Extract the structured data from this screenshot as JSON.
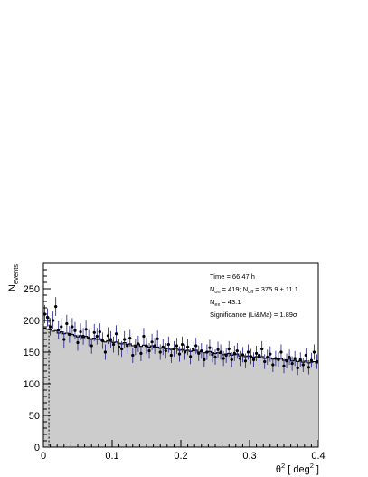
{
  "stats": {
    "time": "Time = 66.47 h",
    "line2": {
      "a": "N",
      "a_sub": "on",
      "b": " = 419; N",
      "b_sub": "off",
      "c": " = 375.9 ± 11.1"
    },
    "line3": {
      "a": "N",
      "a_sub": "ex",
      "b": " = 43.1"
    },
    "significance": "Significance (Li&Ma) = 1.89σ"
  },
  "axes": {
    "ylabel_main": "N",
    "ylabel_sub": "events",
    "xlabel_theta": "θ",
    "xlabel_sup": "2",
    "xlabel_unit": " [ deg",
    "xlabel_unit_sup": "2",
    "xlabel_close": " ]"
  },
  "chart_data": {
    "type": "scatter",
    "title": "",
    "xlabel": "θ² [ deg² ]",
    "ylabel": "N_events",
    "xlim": [
      0,
      0.4
    ],
    "ylim": [
      0,
      290
    ],
    "xticks": [
      0,
      0.1,
      0.2,
      0.3,
      0.4
    ],
    "xtick_labels": [
      "0",
      "0.1",
      "0.2",
      "0.3",
      "0.4"
    ],
    "yticks": [
      0,
      50,
      100,
      150,
      200,
      250
    ],
    "ytick_labels": [
      "0",
      "50",
      "100",
      "150",
      "200",
      "250"
    ],
    "cut_line_x": 0.008,
    "colors": {
      "on_points": "#000000",
      "on_errors": "#1a1a8c",
      "background_fill": "#cccccc",
      "background_line": "#000000"
    },
    "series": [
      {
        "label": "on",
        "x": [
          0.002,
          0.006,
          0.01,
          0.014,
          0.018,
          0.022,
          0.026,
          0.03,
          0.034,
          0.038,
          0.042,
          0.046,
          0.05,
          0.054,
          0.058,
          0.062,
          0.066,
          0.07,
          0.074,
          0.078,
          0.082,
          0.086,
          0.09,
          0.094,
          0.098,
          0.102,
          0.106,
          0.11,
          0.114,
          0.118,
          0.122,
          0.126,
          0.13,
          0.134,
          0.138,
          0.142,
          0.146,
          0.15,
          0.154,
          0.158,
          0.162,
          0.166,
          0.17,
          0.174,
          0.178,
          0.182,
          0.186,
          0.19,
          0.194,
          0.198,
          0.202,
          0.206,
          0.21,
          0.214,
          0.218,
          0.222,
          0.226,
          0.23,
          0.234,
          0.238,
          0.242,
          0.246,
          0.25,
          0.254,
          0.258,
          0.262,
          0.266,
          0.27,
          0.274,
          0.278,
          0.282,
          0.286,
          0.29,
          0.294,
          0.298,
          0.302,
          0.306,
          0.31,
          0.314,
          0.318,
          0.322,
          0.326,
          0.33,
          0.334,
          0.338,
          0.342,
          0.346,
          0.35,
          0.354,
          0.358,
          0.362,
          0.366,
          0.37,
          0.374,
          0.378,
          0.382,
          0.386,
          0.39,
          0.394,
          0.398
        ],
        "y": [
          210,
          205,
          190,
          200,
          222,
          185,
          190,
          170,
          195,
          178,
          190,
          184,
          165,
          182,
          175,
          186,
          172,
          160,
          181,
          175,
          182,
          168,
          150,
          176,
          170,
          162,
          179,
          158,
          155,
          170,
          160,
          172,
          145,
          158,
          163,
          148,
          175,
          160,
          152,
          166,
          160,
          171,
          150,
          158,
          152,
          162,
          145,
          155,
          160,
          147,
          162,
          150,
          158,
          143,
          155,
          160,
          148,
          152,
          138,
          150,
          157,
          146,
          142,
          154,
          150,
          140,
          145,
          155,
          138,
          148,
          152,
          140,
          146,
          136,
          150,
          143,
          138,
          148,
          145,
          155,
          135,
          142,
          147,
          130,
          140,
          138,
          150,
          128,
          136,
          142,
          132,
          140,
          125,
          138,
          130,
          145,
          126,
          137,
          150,
          135
        ],
        "yerr": [
          14.5,
          14.3,
          13.8,
          14.1,
          14.9,
          13.6,
          13.8,
          13.0,
          14.0,
          13.3,
          13.8,
          13.6,
          12.8,
          13.5,
          13.2,
          13.6,
          13.1,
          12.6,
          13.5,
          13.2,
          13.5,
          13.0,
          12.2,
          13.3,
          13.0,
          12.7,
          13.4,
          12.6,
          12.4,
          13.0,
          12.6,
          13.1,
          12.0,
          12.6,
          12.8,
          12.2,
          13.2,
          12.6,
          12.3,
          12.9,
          12.6,
          13.1,
          12.2,
          12.6,
          12.3,
          12.7,
          12.0,
          12.4,
          12.6,
          12.1,
          12.7,
          12.2,
          12.6,
          12.0,
          12.4,
          12.6,
          12.2,
          12.3,
          11.7,
          12.2,
          12.5,
          12.1,
          11.9,
          12.4,
          12.2,
          11.8,
          12.0,
          12.4,
          11.7,
          12.2,
          12.3,
          11.8,
          12.1,
          11.7,
          12.2,
          12.0,
          11.7,
          12.2,
          12.0,
          12.4,
          11.6,
          11.9,
          12.1,
          11.4,
          11.8,
          11.7,
          12.2,
          11.3,
          11.7,
          11.9,
          11.5,
          11.8,
          11.2,
          11.7,
          11.4,
          12.0,
          11.2,
          11.7,
          12.2,
          11.6
        ]
      },
      {
        "label": "off",
        "x": [
          0.002,
          0.006,
          0.01,
          0.014,
          0.018,
          0.022,
          0.026,
          0.03,
          0.034,
          0.038,
          0.042,
          0.046,
          0.05,
          0.054,
          0.058,
          0.062,
          0.066,
          0.07,
          0.074,
          0.078,
          0.082,
          0.086,
          0.09,
          0.094,
          0.098,
          0.102,
          0.106,
          0.11,
          0.114,
          0.118,
          0.122,
          0.126,
          0.13,
          0.134,
          0.138,
          0.142,
          0.146,
          0.15,
          0.154,
          0.158,
          0.162,
          0.166,
          0.17,
          0.174,
          0.178,
          0.182,
          0.186,
          0.19,
          0.194,
          0.198,
          0.202,
          0.206,
          0.21,
          0.214,
          0.218,
          0.222,
          0.226,
          0.23,
          0.234,
          0.238,
          0.242,
          0.246,
          0.25,
          0.254,
          0.258,
          0.262,
          0.266,
          0.27,
          0.274,
          0.278,
          0.282,
          0.286,
          0.29,
          0.294,
          0.298,
          0.302,
          0.306,
          0.31,
          0.314,
          0.318,
          0.322,
          0.326,
          0.33,
          0.334,
          0.338,
          0.342,
          0.346,
          0.35,
          0.354,
          0.358,
          0.362,
          0.366,
          0.37,
          0.374,
          0.378,
          0.382,
          0.386,
          0.39,
          0.394,
          0.398
        ],
        "y": [
          188,
          186,
          185,
          183,
          184,
          180,
          182,
          179,
          180,
          177,
          178,
          176,
          174,
          176,
          173,
          175,
          172,
          170,
          172,
          170,
          171,
          168,
          166,
          168,
          167,
          165,
          166,
          164,
          163,
          165,
          162,
          163,
          160,
          161,
          162,
          159,
          161,
          159,
          158,
          160,
          157,
          158,
          156,
          157,
          155,
          156,
          154,
          155,
          156,
          153,
          154,
          152,
          153,
          151,
          152,
          153,
          150,
          151,
          149,
          150,
          151,
          149,
          148,
          149,
          148,
          146,
          147,
          148,
          145,
          146,
          147,
          144,
          145,
          143,
          144,
          143,
          142,
          143,
          142,
          143,
          140,
          141,
          141,
          139,
          140,
          139,
          140,
          137,
          138,
          139,
          136,
          137,
          135,
          136,
          134,
          136,
          133,
          134,
          135,
          133
        ]
      }
    ]
  }
}
